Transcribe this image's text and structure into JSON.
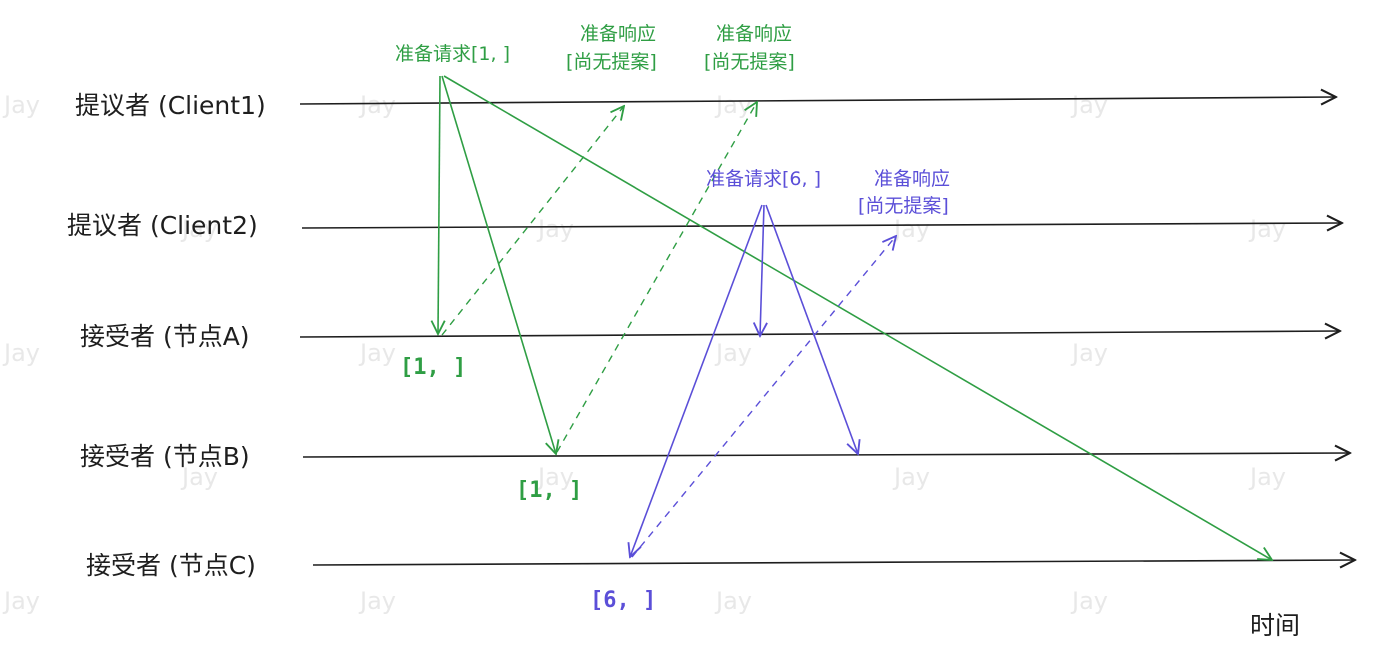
{
  "watermark": "Jay",
  "timelines": {
    "client1": "提议者 (Client1)",
    "client2": "提议者 (Client2)",
    "node_a": "接受者 (节点A)",
    "node_b": "接受者 (节点B)",
    "node_c": "接受者 (节点C)"
  },
  "time_label": "时间",
  "green": {
    "prepare_request": "准备请求[1, ]",
    "response_title": "准备响应",
    "response_body": "[尚无提案]",
    "accepted_a": "[1, ]",
    "accepted_b": "[1, ]"
  },
  "purple": {
    "prepare_request": "准备请求[6, ]",
    "response_title": "准备响应",
    "response_body": "[尚无提案]",
    "accepted_c": "[6, ]"
  },
  "colors": {
    "green": "#2f9e44",
    "purple": "#5b4fd8",
    "line": "#1e1e1e"
  }
}
